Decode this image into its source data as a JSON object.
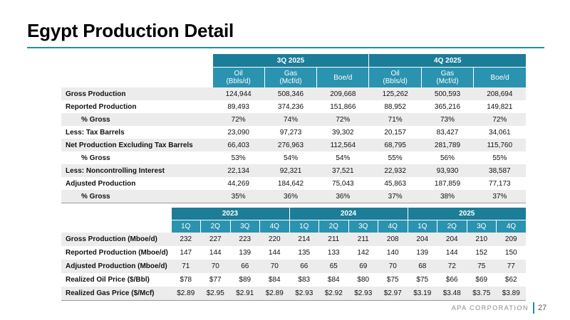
{
  "title": "Egypt Production Detail",
  "colors": {
    "accent": "#1b8fa8",
    "header_dark": "#1b7d97",
    "header_light": "#2a93b0"
  },
  "top_table": {
    "periods": [
      "3Q 2025",
      "4Q 2025"
    ],
    "subheaders": [
      {
        "line1": "Oil",
        "line2": "(Bbls/d)"
      },
      {
        "line1": "Gas",
        "line2": "(Mcf/d)"
      },
      {
        "line1": "Boe/d",
        "line2": ""
      },
      {
        "line1": "Oil",
        "line2": "(Bbls/d)"
      },
      {
        "line1": "Gas",
        "line2": "(Mcf/d)"
      },
      {
        "line1": "Boe/d",
        "line2": ""
      }
    ],
    "rows": [
      {
        "label": "Gross Production",
        "indent": false,
        "values": [
          "124,944",
          "508,346",
          "209,668",
          "125,262",
          "500,593",
          "208,694"
        ]
      },
      {
        "label": "Reported Production",
        "indent": false,
        "values": [
          "89,493",
          "374,236",
          "151,866",
          "88,952",
          "365,216",
          "149,821"
        ]
      },
      {
        "label": "% Gross",
        "indent": true,
        "values": [
          "72%",
          "74%",
          "72%",
          "71%",
          "73%",
          "72%"
        ]
      },
      {
        "label": "Less: Tax Barrels",
        "indent": false,
        "values": [
          "23,090",
          "97,273",
          "39,302",
          "20,157",
          "83,427",
          "34,061"
        ]
      },
      {
        "label": "Net Production Excluding Tax Barrels",
        "indent": false,
        "values": [
          "66,403",
          "276,963",
          "112,564",
          "68,795",
          "281,789",
          "115,760"
        ]
      },
      {
        "label": "% Gross",
        "indent": true,
        "values": [
          "53%",
          "54%",
          "54%",
          "55%",
          "56%",
          "55%"
        ]
      },
      {
        "label": "Less: Noncontrolling Interest",
        "indent": false,
        "values": [
          "22,134",
          "92,321",
          "37,521",
          "22,932",
          "93,930",
          "38,587"
        ]
      },
      {
        "label": "Adjusted Production",
        "indent": false,
        "values": [
          "44,269",
          "184,642",
          "75,043",
          "45,863",
          "187,859",
          "77,173"
        ]
      },
      {
        "label": "% Gross",
        "indent": true,
        "values": [
          "35%",
          "36%",
          "36%",
          "37%",
          "38%",
          "37%"
        ]
      }
    ]
  },
  "bottom_table": {
    "years": [
      "2023",
      "2024",
      "2025"
    ],
    "quarters": [
      "1Q",
      "2Q",
      "3Q",
      "4Q",
      "1Q",
      "2Q",
      "3Q",
      "4Q",
      "1Q",
      "2Q",
      "3Q",
      "4Q"
    ],
    "rows": [
      {
        "label": "Gross Production (Mboe/d)",
        "values": [
          "232",
          "227",
          "223",
          "220",
          "214",
          "211",
          "211",
          "208",
          "204",
          "204",
          "210",
          "209"
        ]
      },
      {
        "label": "Reported Production (Mboe/d)",
        "values": [
          "147",
          "144",
          "139",
          "144",
          "135",
          "133",
          "142",
          "140",
          "139",
          "144",
          "152",
          "150"
        ]
      },
      {
        "label": "Adjusted Production (Mboe/d)",
        "values": [
          "71",
          "70",
          "66",
          "70",
          "66",
          "65",
          "69",
          "70",
          "68",
          "72",
          "75",
          "77"
        ]
      },
      {
        "label": "Realized Oil Price ($/Bbl)",
        "values": [
          "$78",
          "$77",
          "$89",
          "$84",
          "$83",
          "$84",
          "$80",
          "$75",
          "$75",
          "$66",
          "$69",
          "$62"
        ]
      },
      {
        "label": "Realized Gas Price ($/Mcf)",
        "values": [
          "$2.89",
          "$2.95",
          "$2.91",
          "$2.89",
          "$2.93",
          "$2.92",
          "$2.93",
          "$2.97",
          "$3.19",
          "$3.48",
          "$3.75",
          "$3.89"
        ]
      }
    ]
  },
  "footer": {
    "brand": "APA CORPORATION",
    "page_number": "27"
  }
}
